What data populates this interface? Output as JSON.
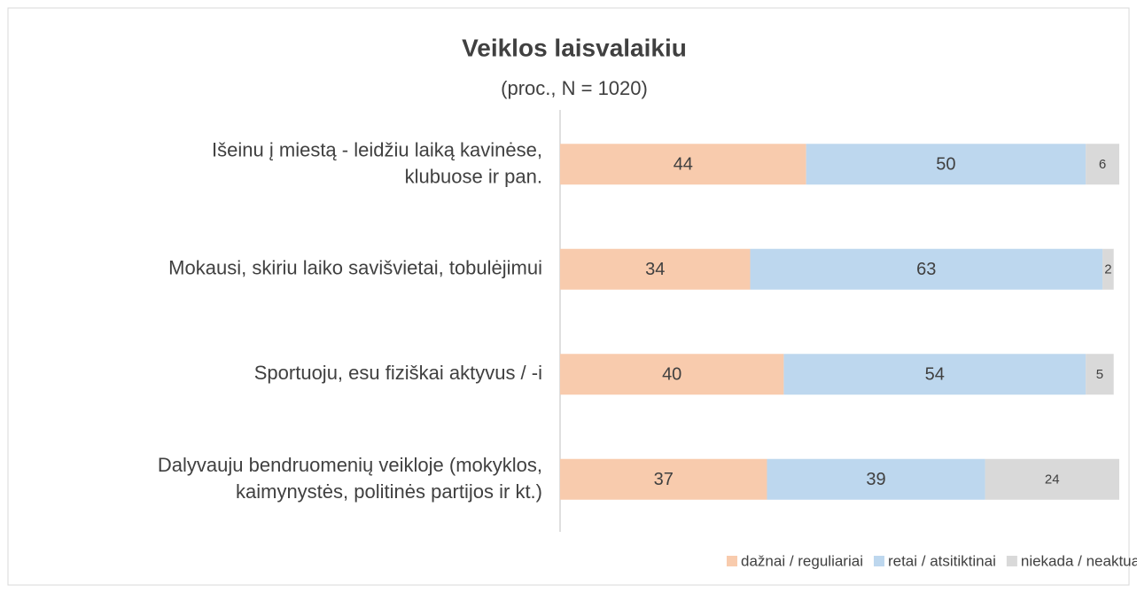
{
  "chart_data": {
    "type": "bar",
    "stacked": true,
    "orientation": "horizontal",
    "title": "Veiklos laisvalaikiu",
    "subtitle": "(proc., N = 1020)",
    "categories": [
      "Išeinu į miestą - leidžiu laiką kavinėse,\nklubuose ir pan.",
      "Mokausi, skiriu laiko savišvietai, tobulėjimui",
      "Sportuoju, esu fiziškai aktyvus / -i",
      "Dalyvauju bendruomenių veikloje (mokyklos,\nkaimynystės, politinės partijos ir kt.)"
    ],
    "series": [
      {
        "name": "dažnai / reguliariai",
        "color": "#f8cbad",
        "values": [
          44,
          34,
          40,
          37
        ]
      },
      {
        "name": "retai / atsitiktinai",
        "color": "#bdd7ee",
        "values": [
          50,
          63,
          54,
          39
        ]
      },
      {
        "name": "niekada / neaktualu",
        "color": "#d9d9d9",
        "values": [
          6,
          2,
          5,
          24
        ]
      }
    ],
    "xlim": [
      0,
      100
    ],
    "legend": "bottom"
  }
}
